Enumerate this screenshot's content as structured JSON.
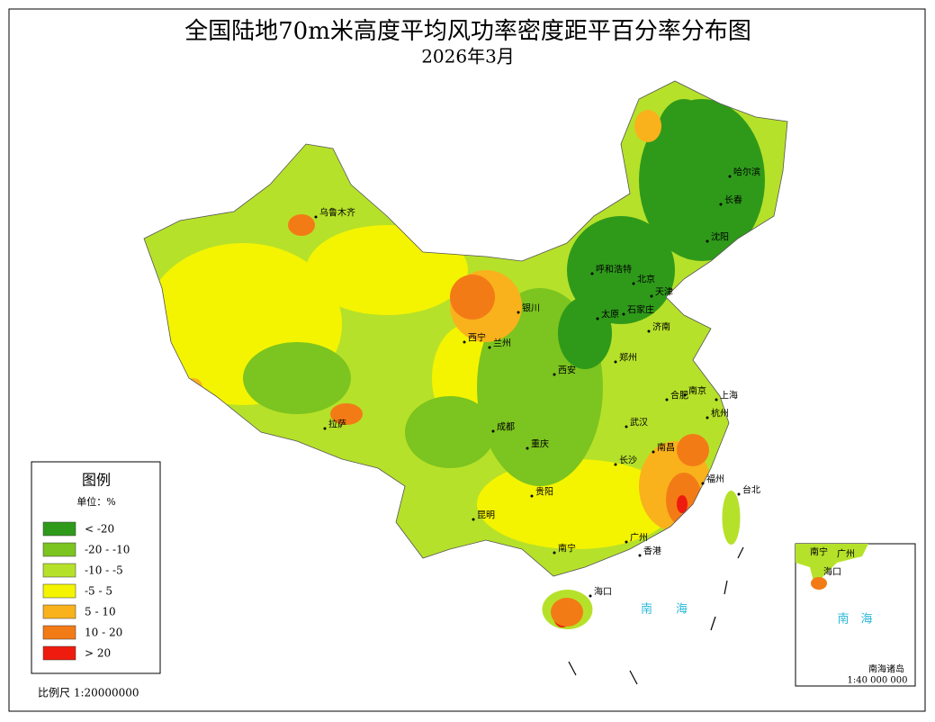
{
  "title": "全国陆地70m米高度平均风功率密度距平百分率分布图",
  "subtitle": "2026年3月",
  "legend": {
    "title": "图例",
    "unit": "单位：%",
    "items": [
      {
        "label": "< -20",
        "color": "#2f9a1a"
      },
      {
        "label": "-20 - -10",
        "color": "#7cc41f"
      },
      {
        "label": "-10 - -5",
        "color": "#b6e12a"
      },
      {
        "label": "-5 - 5",
        "color": "#f4f400"
      },
      {
        "label": "5 - 10",
        "color": "#f9b21c"
      },
      {
        "label": "10 - 20",
        "color": "#f37b16"
      },
      {
        "label": "> 20",
        "color": "#ee1c0e"
      }
    ]
  },
  "scale": "比例尺 1:20000000",
  "cities": [
    "乌鲁木齐",
    "哈尔滨",
    "长春",
    "沈阳",
    "呼和浩特",
    "北京",
    "天津",
    "银川",
    "太原",
    "石家庄",
    "西宁",
    "兰州",
    "济南",
    "郑州",
    "西安",
    "合肥",
    "南京",
    "上海",
    "杭州",
    "武汉",
    "拉萨",
    "成都",
    "重庆",
    "南昌",
    "长沙",
    "福州",
    "台北",
    "贵阳",
    "昆明",
    "南宁",
    "广州",
    "香港",
    "海口"
  ],
  "sea": "南　　海",
  "inset": {
    "cities": [
      "南宁",
      "广州",
      "海口"
    ],
    "sea": "南　海",
    "label": "南海诸岛",
    "scale": "1:40 000 000"
  }
}
